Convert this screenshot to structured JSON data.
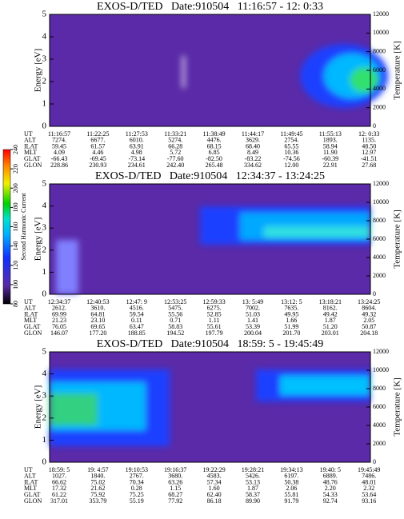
{
  "chart_data": [
    {
      "type": "spectrogram",
      "title": "EXOS-D/TED   Date:910504   11:16:57 - 12: 0:33",
      "y_label": "Energy [eV]",
      "y2_label": "Temperature [K]",
      "ylim": [
        0,
        5
      ],
      "yticks": [
        0,
        1,
        2,
        3,
        4,
        5
      ],
      "y2lim": [
        0,
        12000
      ],
      "y2ticks": [
        0,
        2000,
        4000,
        6000,
        8000,
        10000,
        12000
      ],
      "table": {
        "row_labels": [
          "UT",
          "ALT",
          "ILAT",
          "MLT",
          "GLAT",
          "GLON"
        ],
        "rows": [
          [
            "11:16:57",
            "11:22:25",
            "11:27:53",
            "11:33:21",
            "11:38:49",
            "11:44:17",
            "11:49:45",
            "11:55:13",
            "12: 0:33"
          ],
          [
            "7274.",
            "6677.",
            "6010.",
            "5274.",
            "4476.",
            "3629.",
            "2754.",
            "1893.",
            "1135."
          ],
          [
            "59.45",
            "61.57",
            "63.91",
            "66.28",
            "68.15",
            "68.40",
            "65.55",
            "58.94",
            "48.50"
          ],
          [
            "4.09",
            "4.46",
            "4.98",
            "5.72",
            "6.85",
            "8.49",
            "10.36",
            "11.90",
            "12.97"
          ],
          [
            "-66.43",
            "-69.45",
            "-73.14",
            "-77.60",
            "-82.50",
            "-83.22",
            "-74.56",
            "-60.39",
            "-41.51"
          ],
          [
            "228.86",
            "230.93",
            "234.61",
            "242.40",
            "265.48",
            "334.62",
            "12.00",
            "22.91",
            "27.68"
          ]
        ]
      }
    },
    {
      "type": "spectrogram",
      "title": "EXOS-D/TED   Date:910504   12:34:37 - 13:24:25",
      "y_label": "Energy [eV]",
      "y2_label": "Temperature [K]",
      "ylim": [
        0,
        5
      ],
      "yticks": [
        0,
        1,
        2,
        3,
        4,
        5
      ],
      "y2lim": [
        0,
        12000
      ],
      "y2ticks": [
        0,
        2000,
        4000,
        6000,
        8000,
        10000,
        12000
      ],
      "table": {
        "row_labels": [
          "UT",
          "ALT",
          "ILAT",
          "MLT",
          "GLAT",
          "GLON"
        ],
        "rows": [
          [
            "12:34:37",
            "12:40:53",
            "12:47: 9",
            "12:53:25",
            "12:59:33",
            "13: 5:49",
            "13:12: 5",
            "13:18:21",
            "13:24:25"
          ],
          [
            "2612.",
            "3610.",
            "4516.",
            "5475.",
            "6275.",
            "7002.",
            "7635.",
            "8162.",
            "8604."
          ],
          [
            "69.99",
            "64.81",
            "59.54",
            "55.56",
            "52.85",
            "51.03",
            "49.95",
            "49.42",
            "49.32"
          ],
          [
            "21.23",
            "23.10",
            "0.11",
            "0.71",
            "1.11",
            "1.41",
            "1.66",
            "1.87",
            "2.05"
          ],
          [
            "76.05",
            "69.65",
            "63.47",
            "58.83",
            "55.61",
            "53.39",
            "51.99",
            "51.20",
            "50.87"
          ],
          [
            "146.07",
            "177.20",
            "188.85",
            "194.52",
            "197.79",
            "200.04",
            "201.70",
            "203.01",
            "204.18"
          ]
        ]
      }
    },
    {
      "type": "spectrogram",
      "title": "EXOS-D/TED   Date:910504   18:59: 5 - 19:45:49",
      "y_label": "Energy [eV]",
      "y2_label": "Temperature [K]",
      "ylim": [
        0,
        5
      ],
      "yticks": [
        0,
        1,
        2,
        3,
        4,
        5
      ],
      "y2lim": [
        0,
        12000
      ],
      "y2ticks": [
        0,
        2000,
        4000,
        6000,
        8000,
        10000,
        12000
      ],
      "table": {
        "row_labels": [
          "UT",
          "ALT",
          "ILAT",
          "MLT",
          "GLAT",
          "GLON"
        ],
        "rows": [
          [
            "18:59: 5",
            "19: 4:57",
            "19:10:53",
            "19:16:37",
            "19:22:29",
            "19:28:21",
            "19:34:13",
            "19:40: 5",
            "19:45:49"
          ],
          [
            "1027.",
            "1840.",
            "2767.",
            "3680.",
            "4583.",
            "5426.",
            "6197.",
            "6889.",
            "7486."
          ],
          [
            "66.62",
            "75.02",
            "70.34",
            "63.26",
            "57.34",
            "53.13",
            "50.38",
            "48.76",
            "48.01"
          ],
          [
            "17.32",
            "21.62",
            "0.28",
            "1.15",
            "1.60",
            "1.87",
            "2.06",
            "2.20",
            "2.32"
          ],
          [
            "61.22",
            "75.92",
            "75.25",
            "68.27",
            "62.40",
            "58.37",
            "55.81",
            "54.33",
            "53.64"
          ],
          [
            "317.01",
            "353.79",
            "55.19",
            "77.92",
            "86.18",
            "89.90",
            "91.79",
            "92.74",
            "93.16"
          ]
        ]
      }
    }
  ],
  "colorbar": {
    "label": "Second Harmonic Current",
    "lim": [
      80,
      240
    ],
    "ticks": [
      80,
      100,
      120,
      140,
      160,
      180,
      200,
      220,
      240
    ]
  }
}
